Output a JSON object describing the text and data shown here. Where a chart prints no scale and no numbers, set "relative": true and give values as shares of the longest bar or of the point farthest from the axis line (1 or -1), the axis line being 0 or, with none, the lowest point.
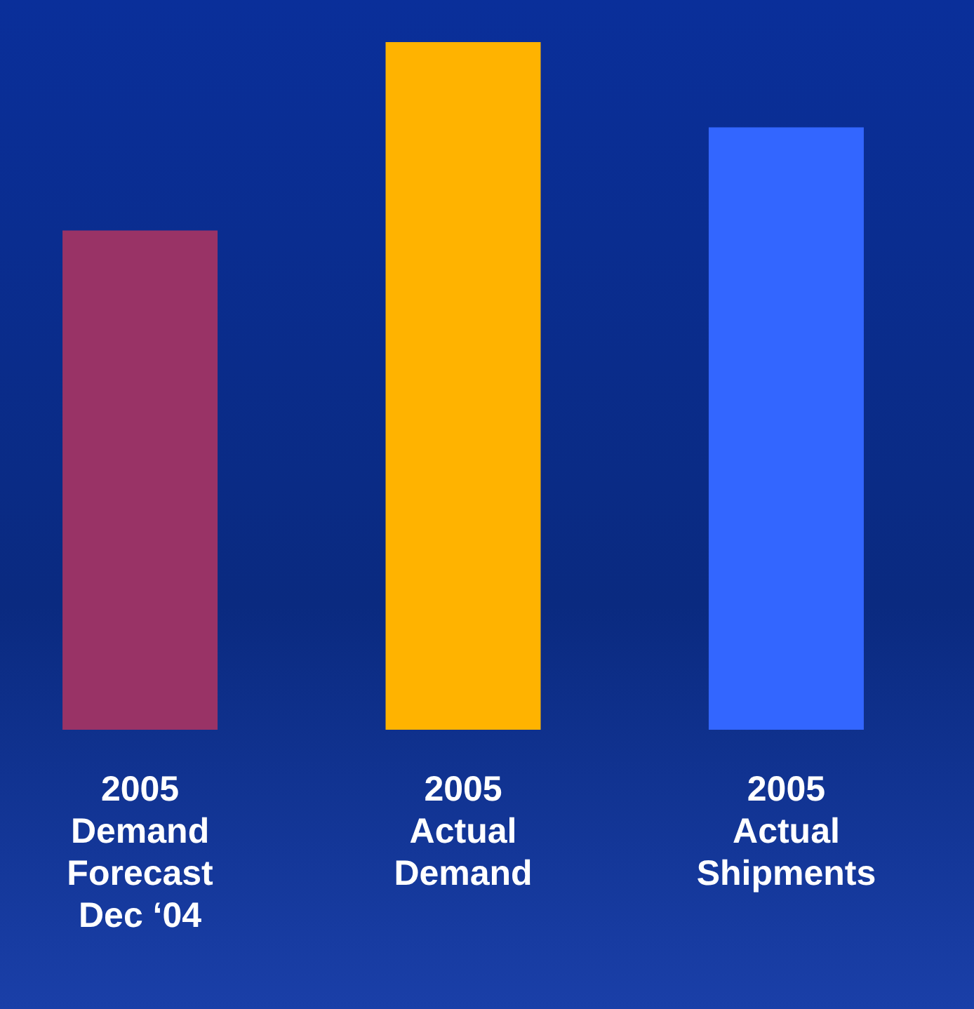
{
  "chart_data": {
    "type": "bar",
    "relative": true,
    "categories": [
      "2005 Demand Forecast Dec ‘04",
      "2005 Actual Demand",
      "2005 Actual Shipments"
    ],
    "values": [
      0.726,
      1,
      0.876
    ],
    "colors": [
      "#993366",
      "#ffb300",
      "#3366ff"
    ]
  }
}
